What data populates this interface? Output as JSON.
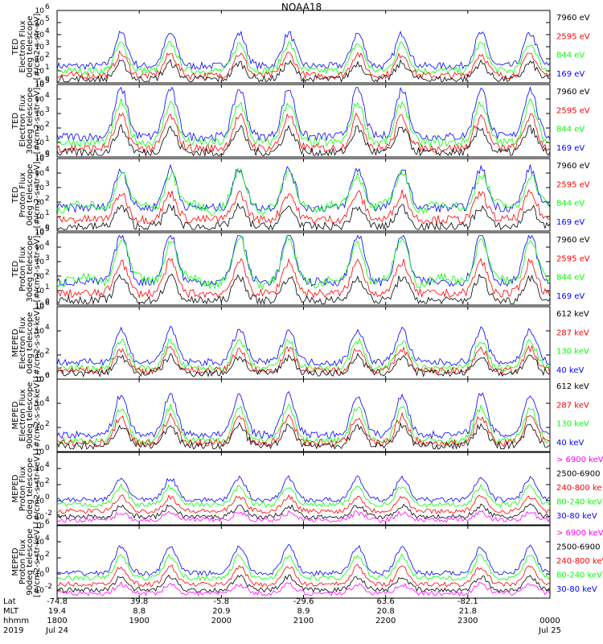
{
  "title": "NOAA18",
  "colors": {
    "black": "#000000",
    "blue": "#0000ff",
    "green": "#00ff00",
    "red": "#ff0000",
    "magenta": "#ff00ff"
  },
  "chart_data": [
    {
      "type": "line",
      "panel": 1,
      "ylabel": [
        "TED",
        "Electron Flux",
        "0deg telescope",
        "[#/cm2-s-str-eV]"
      ],
      "ylim_log10": [
        0,
        6
      ],
      "yticks_log10": [
        0,
        1,
        2,
        3,
        4,
        5,
        6
      ],
      "legend": [
        {
          "label": "7960 eV",
          "color": "#000000"
        },
        {
          "label": "2595 eV",
          "color": "#ff0000"
        },
        {
          "label": "844 eV",
          "color": "#00ff00"
        },
        {
          "label": "169 eV",
          "color": "#0000ff"
        }
      ]
    },
    {
      "type": "line",
      "panel": 2,
      "ylabel": [
        "TED",
        "Electron Flux",
        "30deg telescope",
        "[#/cm2-s-str-eV]"
      ],
      "ylim_log10": [
        0,
        5
      ],
      "yticks_log10": [
        0,
        1,
        2,
        3,
        4,
        5
      ],
      "legend": [
        {
          "label": "7960 eV",
          "color": "#000000"
        },
        {
          "label": "2595 eV",
          "color": "#ff0000"
        },
        {
          "label": "844 eV",
          "color": "#00ff00"
        },
        {
          "label": "169 eV",
          "color": "#0000ff"
        }
      ]
    },
    {
      "type": "line",
      "panel": 3,
      "ylabel": [
        "TED",
        "Proton Flux",
        "0deg telescope",
        "[#/cm2-s-str-eV]"
      ],
      "ylim_log10": [
        0,
        5
      ],
      "yticks_log10": [
        0,
        1,
        2,
        3,
        4,
        5
      ],
      "legend": [
        {
          "label": "7960 eV",
          "color": "#000000"
        },
        {
          "label": "2595 eV",
          "color": "#ff0000"
        },
        {
          "label": "844 eV",
          "color": "#00ff00"
        },
        {
          "label": "169 eV",
          "color": "#0000ff"
        }
      ]
    },
    {
      "type": "line",
      "panel": 4,
      "ylabel": [
        "TED",
        "Proton Flux",
        "30deg telescope",
        "[#/cm2-s-str-eV]"
      ],
      "ylim_log10": [
        0,
        5
      ],
      "yticks_log10": [
        0,
        1,
        2,
        3,
        4,
        5
      ],
      "legend": [
        {
          "label": "7960 eV",
          "color": "#000000"
        },
        {
          "label": "2595 eV",
          "color": "#ff0000"
        },
        {
          "label": "844 eV",
          "color": "#00ff00"
        },
        {
          "label": "169 eV",
          "color": "#0000ff"
        }
      ]
    },
    {
      "type": "line",
      "panel": 5,
      "ylabel": [
        "MEPED",
        "Electron Flux",
        "0deg telescope",
        "[#/cm2-s-str-keV]"
      ],
      "ylim_log10": [
        0,
        6
      ],
      "yticks_log10": [
        0,
        2,
        4,
        6
      ],
      "legend": [
        {
          "label": "612 keV",
          "color": "#000000"
        },
        {
          "label": "287 keV",
          "color": "#ff0000"
        },
        {
          "label": "130 keV",
          "color": "#00ff00"
        },
        {
          "label": "40 keV",
          "color": "#0000ff"
        }
      ]
    },
    {
      "type": "line",
      "panel": 6,
      "ylabel": [
        "MEPED",
        "Electron Flux",
        "90deg telescope",
        "[#/cm2-s-str-keV]"
      ],
      "ylim_log10": [
        0,
        6
      ],
      "yticks_log10": [
        0,
        2,
        4,
        6
      ],
      "legend": [
        {
          "label": "612 keV",
          "color": "#000000"
        },
        {
          "label": "287 keV",
          "color": "#ff0000"
        },
        {
          "label": "130 keV",
          "color": "#00ff00"
        },
        {
          "label": "40 keV",
          "color": "#0000ff"
        }
      ]
    },
    {
      "type": "line",
      "panel": 7,
      "ylabel": [
        "MEPED",
        "Proton Flux",
        "0deg telescope",
        "[#/cm2-s-str-keV]"
      ],
      "ylim_log10": [
        -3,
        6
      ],
      "yticks_log10": [
        -2,
        0,
        2,
        4
      ],
      "legend": [
        {
          "label": "> 6900 keV",
          "color": "#ff00ff"
        },
        {
          "label": "2500-6900",
          "color": "#000000"
        },
        {
          "label": "240-800 ke",
          "color": "#ff0000"
        },
        {
          "label": "80-240 keV",
          "color": "#00ff00"
        },
        {
          "label": "30-80 keV",
          "color": "#0000ff"
        }
      ]
    },
    {
      "type": "line",
      "panel": 8,
      "ylabel": [
        "MEPED",
        "Proton Flux",
        "90deg telescope",
        "[#/cm2-s-str-keV]"
      ],
      "ylim_log10": [
        -3,
        6
      ],
      "yticks_log10": [
        -2,
        0,
        2,
        4,
        6
      ],
      "legend": [
        {
          "label": "> 6900 keV",
          "color": "#ff00ff"
        },
        {
          "label": "2500-6900",
          "color": "#000000"
        },
        {
          "label": "240-800 keV",
          "color": "#ff0000"
        },
        {
          "label": "80-240 keV",
          "color": "#00ff00"
        },
        {
          "label": "30-80 keV",
          "color": "#0000ff"
        }
      ]
    }
  ],
  "x_axis": {
    "row_labels": [
      "Lat",
      "MLT",
      "hhmm",
      "2019"
    ],
    "ticks": [
      {
        "lat": "-74.8",
        "mlt": "19.4",
        "hhmm": "1800",
        "date": "Jul 24"
      },
      {
        "lat": "39.8",
        "mlt": "8.8",
        "hhmm": "1900",
        "date": ""
      },
      {
        "lat": "-5.8",
        "mlt": "20.9",
        "hhmm": "2000",
        "date": ""
      },
      {
        "lat": "-29.6",
        "mlt": "8.9",
        "hhmm": "2100",
        "date": ""
      },
      {
        "lat": "63.6",
        "mlt": "20.8",
        "hhmm": "2200",
        "date": ""
      },
      {
        "lat": "-82.1",
        "mlt": "21.8",
        "hhmm": "2300",
        "date": ""
      },
      {
        "lat": "",
        "mlt": "",
        "hhmm": "0000",
        "date": "Jul 25"
      }
    ],
    "hours_range": [
      18,
      24
    ]
  }
}
